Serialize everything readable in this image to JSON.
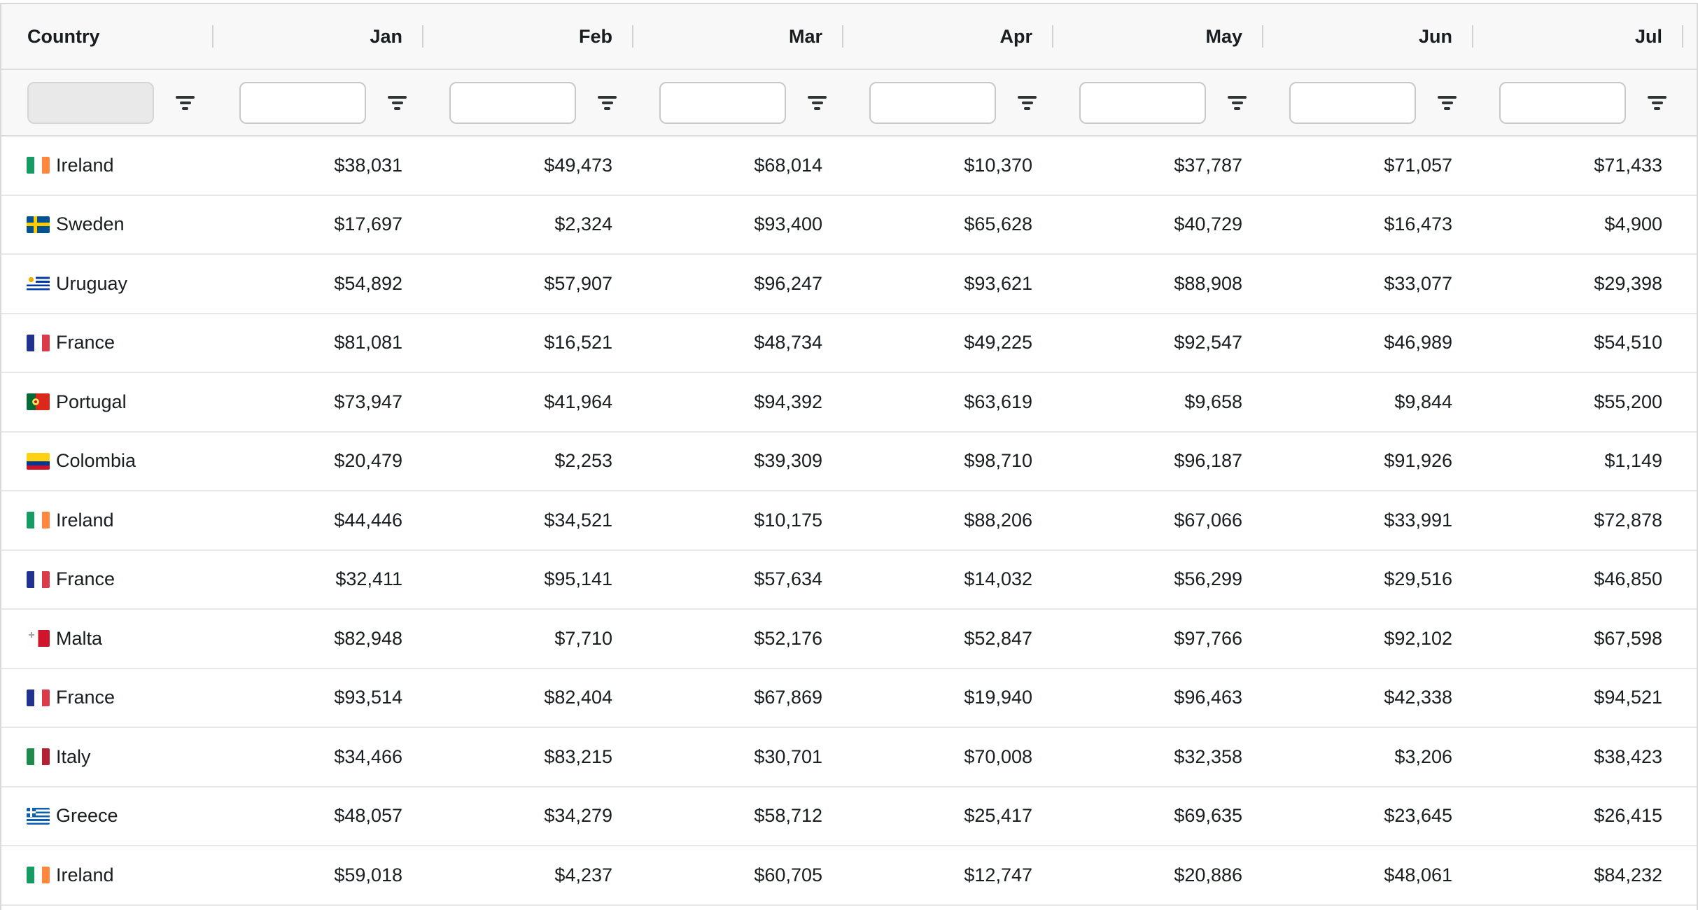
{
  "grid": {
    "columns": [
      {
        "id": "country",
        "label": "Country",
        "align": "left",
        "filter_disabled": true
      },
      {
        "id": "jan",
        "label": "Jan",
        "align": "right",
        "filter_disabled": false
      },
      {
        "id": "feb",
        "label": "Feb",
        "align": "right",
        "filter_disabled": false
      },
      {
        "id": "mar",
        "label": "Mar",
        "align": "right",
        "filter_disabled": false
      },
      {
        "id": "apr",
        "label": "Apr",
        "align": "right",
        "filter_disabled": false
      },
      {
        "id": "may",
        "label": "May",
        "align": "right",
        "filter_disabled": false
      },
      {
        "id": "jun",
        "label": "Jun",
        "align": "right",
        "filter_disabled": false
      },
      {
        "id": "jul",
        "label": "Jul",
        "align": "right",
        "filter_disabled": false
      }
    ],
    "filter_icon": "filter-funnel-icon",
    "rows": [
      {
        "country": "Ireland",
        "flag": "ireland",
        "values": [
          "$38,031",
          "$49,473",
          "$68,014",
          "$10,370",
          "$37,787",
          "$71,057",
          "$71,433"
        ]
      },
      {
        "country": "Sweden",
        "flag": "sweden",
        "values": [
          "$17,697",
          "$2,324",
          "$93,400",
          "$65,628",
          "$40,729",
          "$16,473",
          "$4,900"
        ]
      },
      {
        "country": "Uruguay",
        "flag": "uruguay",
        "values": [
          "$54,892",
          "$57,907",
          "$96,247",
          "$93,621",
          "$88,908",
          "$33,077",
          "$29,398"
        ]
      },
      {
        "country": "France",
        "flag": "france",
        "values": [
          "$81,081",
          "$16,521",
          "$48,734",
          "$49,225",
          "$92,547",
          "$46,989",
          "$54,510"
        ]
      },
      {
        "country": "Portugal",
        "flag": "portugal",
        "values": [
          "$73,947",
          "$41,964",
          "$94,392",
          "$63,619",
          "$9,658",
          "$9,844",
          "$55,200"
        ]
      },
      {
        "country": "Colombia",
        "flag": "colombia",
        "values": [
          "$20,479",
          "$2,253",
          "$39,309",
          "$98,710",
          "$96,187",
          "$91,926",
          "$1,149"
        ]
      },
      {
        "country": "Ireland",
        "flag": "ireland",
        "values": [
          "$44,446",
          "$34,521",
          "$10,175",
          "$88,206",
          "$67,066",
          "$33,991",
          "$72,878"
        ]
      },
      {
        "country": "France",
        "flag": "france",
        "values": [
          "$32,411",
          "$95,141",
          "$57,634",
          "$14,032",
          "$56,299",
          "$29,516",
          "$46,850"
        ]
      },
      {
        "country": "Malta",
        "flag": "malta",
        "values": [
          "$82,948",
          "$7,710",
          "$52,176",
          "$52,847",
          "$97,766",
          "$92,102",
          "$67,598"
        ]
      },
      {
        "country": "France",
        "flag": "france",
        "values": [
          "$93,514",
          "$82,404",
          "$67,869",
          "$19,940",
          "$96,463",
          "$42,338",
          "$94,521"
        ]
      },
      {
        "country": "Italy",
        "flag": "italy",
        "values": [
          "$34,466",
          "$83,215",
          "$30,701",
          "$70,008",
          "$32,358",
          "$3,206",
          "$38,423"
        ]
      },
      {
        "country": "Greece",
        "flag": "greece",
        "values": [
          "$48,057",
          "$34,279",
          "$58,712",
          "$25,417",
          "$69,635",
          "$23,645",
          "$26,415"
        ]
      },
      {
        "country": "Ireland",
        "flag": "ireland",
        "values": [
          "$59,018",
          "$4,237",
          "$60,705",
          "$12,747",
          "$20,886",
          "$48,061",
          "$84,232"
        ]
      }
    ],
    "colors": {
      "header_bg": "#f8f8f8",
      "row_bg": "#ffffff",
      "text": "#181d1f",
      "row_border": "#e8e8e8",
      "header_border": "#dcdcdc"
    }
  }
}
